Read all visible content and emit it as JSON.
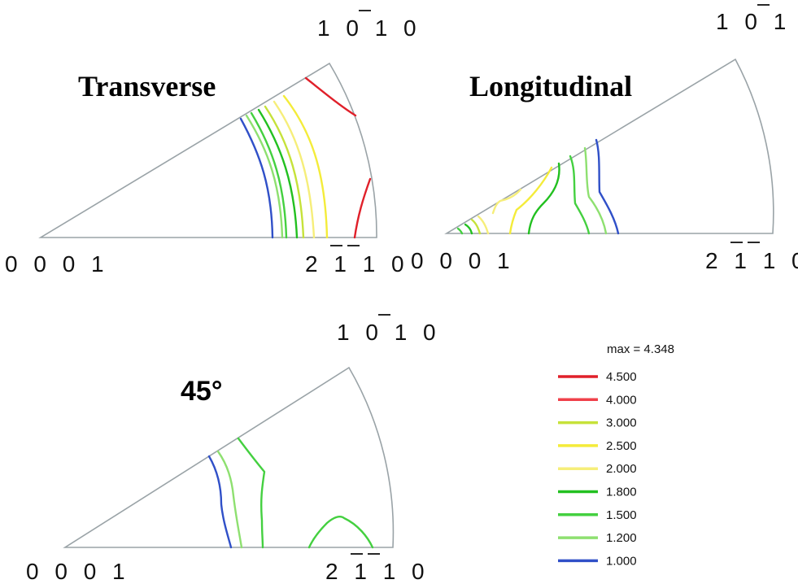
{
  "figures": [
    {
      "id": "transverse",
      "title": "Transverse",
      "labels": {
        "origin": "0 0 0 1",
        "corner_top": "1 0 1 0",
        "corner_right": "2 1 1 0"
      }
    },
    {
      "id": "longitudinal",
      "title": "Longitudinal",
      "labels": {
        "origin": "0 0 0 1",
        "corner_top": "1 0 1 0",
        "corner_right": "2 1 1 0"
      }
    },
    {
      "id": "deg45",
      "title": "45°",
      "labels": {
        "origin": "0 0 0 1",
        "corner_top": "1 0 1 0",
        "corner_right": "2 1 1 0"
      }
    }
  ],
  "legend": {
    "max_label": "max = 4.348",
    "levels": [
      {
        "value": "4.500",
        "color": "#e0202a"
      },
      {
        "value": "4.000",
        "color": "#f0404a"
      },
      {
        "value": "3.000",
        "color": "#c6e23a"
      },
      {
        "value": "2.500",
        "color": "#f4ec3a"
      },
      {
        "value": "2.000",
        "color": "#f6ee7a"
      },
      {
        "value": "1.800",
        "color": "#22c020"
      },
      {
        "value": "1.500",
        "color": "#44d040"
      },
      {
        "value": "1.200",
        "color": "#8ee070"
      },
      {
        "value": "1.000",
        "color": "#3050c8"
      }
    ]
  }
}
